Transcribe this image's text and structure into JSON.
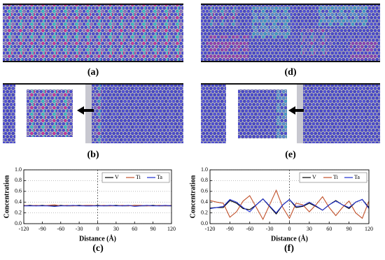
{
  "labels": [
    "(a)",
    "(d)",
    "(b)",
    "(e)",
    "(c)",
    "(f)"
  ],
  "chart_data": [
    {
      "type": "line",
      "xlabel": "Distance (Å)",
      "ylabel": "Concentration",
      "x": [
        -120,
        -110,
        -100,
        -90,
        -80,
        -70,
        -60,
        -50,
        -40,
        -30,
        -20,
        -10,
        0,
        10,
        20,
        30,
        40,
        50,
        60,
        70,
        80,
        90,
        100,
        110,
        120
      ],
      "series": [
        {
          "name": "V",
          "color": "#000000",
          "values": [
            0.33,
            0.34,
            0.33,
            0.34,
            0.33,
            0.33,
            0.34,
            0.33,
            0.33,
            0.34,
            0.33,
            0.33,
            0.34,
            0.33,
            0.33,
            0.34,
            0.33,
            0.33,
            0.34,
            0.33,
            0.33,
            0.34,
            0.33,
            0.33,
            0.33
          ]
        },
        {
          "name": "Ti",
          "color": "#c0502a",
          "values": [
            0.34,
            0.33,
            0.34,
            0.33,
            0.34,
            0.35,
            0.33,
            0.34,
            0.33,
            0.33,
            0.34,
            0.34,
            0.33,
            0.34,
            0.33,
            0.33,
            0.34,
            0.33,
            0.34,
            0.34,
            0.33,
            0.33,
            0.34,
            0.33,
            0.34
          ]
        },
        {
          "name": "Ta",
          "color": "#1f2fd0",
          "values": [
            0.33,
            0.33,
            0.33,
            0.33,
            0.33,
            0.32,
            0.33,
            0.33,
            0.34,
            0.33,
            0.33,
            0.33,
            0.33,
            0.33,
            0.34,
            0.33,
            0.33,
            0.34,
            0.32,
            0.33,
            0.34,
            0.33,
            0.33,
            0.34,
            0.33
          ]
        }
      ],
      "xlim": [
        -120,
        120
      ],
      "xticks": [
        -120,
        -90,
        -60,
        -30,
        0,
        30,
        60,
        90,
        120
      ],
      "ylim": [
        0,
        1
      ],
      "yticks": [
        {
          "value": 0,
          "label": "0.0"
        },
        0.2,
        0.4,
        0.6,
        0.8,
        {
          "value": 1,
          "label": "1.0"
        }
      ],
      "grid": true,
      "legend": "upper right"
    },
    {
      "type": "line",
      "xlabel": "Distance (Å)",
      "ylabel": "Concentration",
      "x": [
        -120,
        -110,
        -100,
        -90,
        -80,
        -70,
        -60,
        -50,
        -40,
        -30,
        -20,
        -10,
        0,
        10,
        20,
        30,
        40,
        50,
        60,
        70,
        80,
        90,
        100,
        110,
        120
      ],
      "series": [
        {
          "name": "V",
          "color": "#000000",
          "values": [
            0.29,
            0.3,
            0.3,
            0.43,
            0.38,
            0.28,
            0.26,
            0.35,
            0.46,
            0.32,
            0.18,
            0.35,
            0.45,
            0.3,
            0.32,
            0.38,
            0.32,
            0.25,
            0.35,
            0.43,
            0.35,
            0.28,
            0.4,
            0.45,
            0.3
          ]
        },
        {
          "name": "Ti",
          "color": "#c0502a",
          "values": [
            0.43,
            0.4,
            0.38,
            0.12,
            0.22,
            0.42,
            0.52,
            0.3,
            0.08,
            0.35,
            0.62,
            0.3,
            0.1,
            0.38,
            0.35,
            0.22,
            0.35,
            0.5,
            0.3,
            0.15,
            0.3,
            0.42,
            0.2,
            0.1,
            0.42
          ]
        },
        {
          "name": "Ta",
          "color": "#1f2fd0",
          "values": [
            0.28,
            0.3,
            0.32,
            0.45,
            0.4,
            0.3,
            0.22,
            0.35,
            0.46,
            0.33,
            0.2,
            0.35,
            0.45,
            0.32,
            0.33,
            0.4,
            0.33,
            0.25,
            0.35,
            0.42,
            0.35,
            0.3,
            0.4,
            0.45,
            0.28
          ]
        }
      ],
      "xlim": [
        -120,
        120
      ],
      "xticks": [
        -120,
        -90,
        -60,
        -30,
        0,
        30,
        60,
        90,
        120
      ],
      "ylim": [
        0,
        1
      ],
      "yticks": [
        {
          "value": 0,
          "label": "0.0"
        },
        0.2,
        0.4,
        0.6,
        0.8,
        {
          "value": 1,
          "label": "1.0"
        }
      ],
      "grid": true,
      "legend": "upper right"
    }
  ]
}
